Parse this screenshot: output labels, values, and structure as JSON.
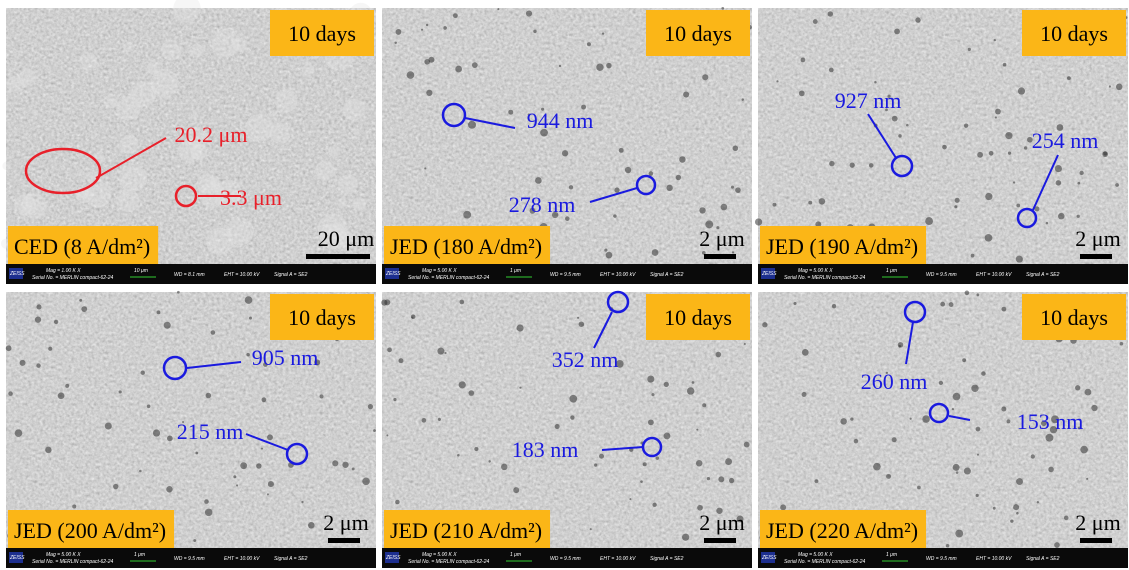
{
  "panels": [
    {
      "duration": "10 days",
      "condition": "CED (8 A/dm²)",
      "scale": "20 μm",
      "annotations": [
        "20.2 μm",
        "3.3 μm"
      ],
      "info": {
        "logo": "ZEISS",
        "mag": "Mag = 1.00 K X",
        "serial": "Serial No. = MERLIN compact-62-24",
        "bar": "10 μm",
        "wd": "WD = 8.1 mm",
        "eht": "EHT = 10.00 kV",
        "signal": "Signal A = SE2"
      }
    },
    {
      "duration": "10 days",
      "condition": "JED (180 A/dm²)",
      "scale": "2 μm",
      "annotations": [
        "944 nm",
        "278 nm"
      ],
      "info": {
        "logo": "ZEISS",
        "mag": "Mag = 5.00 K X",
        "serial": "Serial No. = MERLIN compact-62-24",
        "bar": "1 μm",
        "wd": "WD = 9.5 mm",
        "eht": "EHT = 10.00 kV",
        "signal": "Signal A = SE2"
      }
    },
    {
      "duration": "10 days",
      "condition": "JED (190 A/dm²)",
      "scale": "2 μm",
      "annotations": [
        "927 nm",
        "254 nm"
      ],
      "info": {
        "logo": "ZEISS",
        "mag": "Mag = 5.00 K X",
        "serial": "Serial No. = MERLIN compact-62-24",
        "bar": "1 μm",
        "wd": "WD = 9.5 mm",
        "eht": "EHT = 10.00 kV",
        "signal": "Signal A = SE2"
      }
    },
    {
      "duration": "10 days",
      "condition": "JED (200 A/dm²)",
      "scale": "2 μm",
      "annotations": [
        "905 nm",
        "215 nm"
      ],
      "info": {
        "logo": "ZEISS",
        "mag": "Mag = 5.00 K X",
        "serial": "Serial No. = MERLIN compact-62-24",
        "bar": "1 μm",
        "wd": "WD = 9.5 mm",
        "eht": "EHT = 10.00 kV",
        "signal": "Signal A = SE2"
      }
    },
    {
      "duration": "10 days",
      "condition": "JED (210 A/dm²)",
      "scale": "2 μm",
      "annotations": [
        "352 nm",
        "183 nm"
      ],
      "info": {
        "logo": "ZEISS",
        "mag": "Mag = 5.00 K X",
        "serial": "Serial No. = MERLIN compact-62-24",
        "bar": "1 μm",
        "wd": "WD = 9.5 mm",
        "eht": "EHT = 10.00 kV",
        "signal": "Signal A = SE2"
      }
    },
    {
      "duration": "10 days",
      "condition": "JED (220 A/dm²)",
      "scale": "2 μm",
      "annotations": [
        "260 nm",
        "153 nm"
      ],
      "info": {
        "logo": "ZEISS",
        "mag": "Mag = 5.00 K X",
        "serial": "Serial No. = MERLIN compact-62-24",
        "bar": "1 μm",
        "wd": "WD = 9.5 mm",
        "eht": "EHT = 10.00 kV",
        "signal": "Signal A = SE2"
      }
    }
  ]
}
